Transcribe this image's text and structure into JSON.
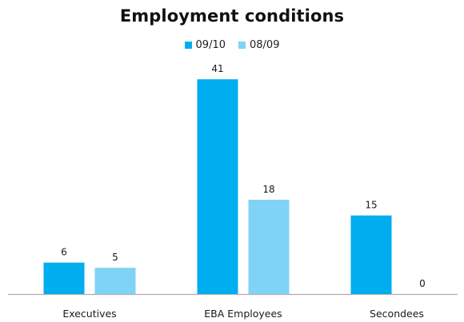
{
  "chart_data": {
    "type": "bar",
    "title": "Employment conditions",
    "categories": [
      "Executives",
      "EBA Employees",
      "Secondees"
    ],
    "series": [
      {
        "name": "09/10",
        "values": [
          6,
          41,
          15
        ],
        "color": "#00AEEF"
      },
      {
        "name": "08/09",
        "values": [
          5,
          18,
          0
        ],
        "color": "#7FD3F4"
      }
    ],
    "xlabel": "",
    "ylabel": "",
    "ylim": [
      0,
      45
    ],
    "grid": false,
    "legend": "top-center",
    "data_labels": true
  }
}
